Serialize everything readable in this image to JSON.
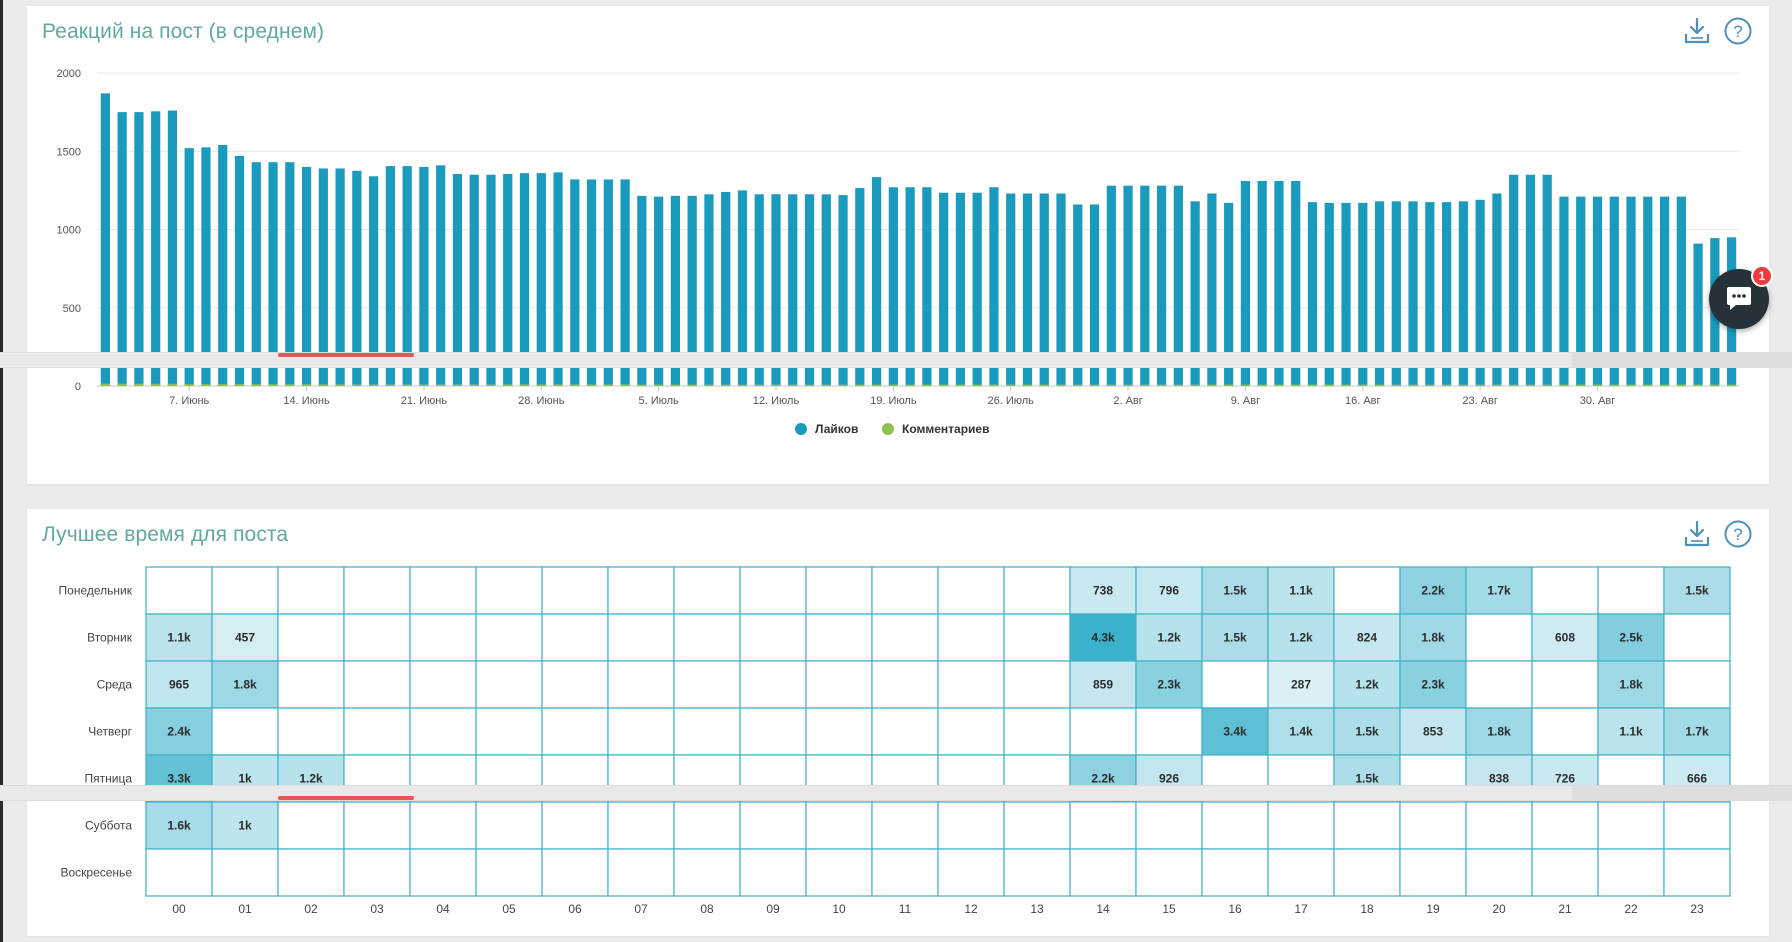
{
  "panels": {
    "reactions": {
      "title": "Реакций на пост (в среднем)"
    },
    "best_time": {
      "title": "Лучшее время для поста"
    }
  },
  "colors": {
    "likes": "#1a9bbd",
    "comments": "#8cc152",
    "title": "#5fa9a0",
    "heat_cell_border": "#3fb0c4",
    "heat_low": "#e6f4f8",
    "heat_high": "#3ab2cb"
  },
  "icons": {
    "download": "download-icon",
    "help": "help-icon",
    "chat": "chat-icon"
  },
  "chat": {
    "badge": "1"
  },
  "chart_data": [
    {
      "type": "bar",
      "title": "Реакций на пост (в среднем)",
      "ylim": [
        0,
        2000
      ],
      "yticks": [
        0,
        500,
        1000,
        1500,
        2000
      ],
      "x_start": "2018-06-02",
      "x_ticks": [
        {
          "date": "2018-06-07",
          "label": "7. Июнь"
        },
        {
          "date": "2018-06-14",
          "label": "14. Июнь"
        },
        {
          "date": "2018-06-21",
          "label": "21. Июнь"
        },
        {
          "date": "2018-06-28",
          "label": "28. Июнь"
        },
        {
          "date": "2018-07-05",
          "label": "5. Июль"
        },
        {
          "date": "2018-07-12",
          "label": "12. Июль"
        },
        {
          "date": "2018-07-19",
          "label": "19. Июль"
        },
        {
          "date": "2018-07-26",
          "label": "26. Июль"
        },
        {
          "date": "2018-08-02",
          "label": "2. Авг"
        },
        {
          "date": "2018-08-09",
          "label": "9. Авг"
        },
        {
          "date": "2018-08-16",
          "label": "16. Авг"
        },
        {
          "date": "2018-08-23",
          "label": "23. Авг"
        },
        {
          "date": "2018-08-30",
          "label": "30. Авг"
        }
      ],
      "legend_position": "bottom-center",
      "grid": true,
      "series": [
        {
          "name": "Лайков",
          "color": "#1a9bbd",
          "values": [
            1870,
            1750,
            1750,
            1755,
            1760,
            1520,
            1525,
            1540,
            1470,
            1430,
            1430,
            1430,
            1400,
            1390,
            1390,
            1375,
            1340,
            1405,
            1405,
            1400,
            1410,
            1355,
            1350,
            1350,
            1355,
            1360,
            1360,
            1365,
            1320,
            1320,
            1320,
            1320,
            1215,
            1210,
            1215,
            1215,
            1225,
            1240,
            1250,
            1225,
            1225,
            1225,
            1225,
            1225,
            1220,
            1265,
            1335,
            1270,
            1270,
            1270,
            1235,
            1235,
            1235,
            1270,
            1230,
            1230,
            1230,
            1230,
            1160,
            1160,
            1280,
            1280,
            1280,
            1280,
            1280,
            1180,
            1230,
            1170,
            1310,
            1310,
            1310,
            1310,
            1175,
            1170,
            1170,
            1170,
            1180,
            1180,
            1180,
            1175,
            1175,
            1180,
            1190,
            1230,
            1350,
            1350,
            1350,
            1210,
            1210,
            1210,
            1210,
            1210,
            1210,
            1210,
            1210,
            910,
            945,
            950
          ]
        },
        {
          "name": "Комментариев",
          "color": "#8cc152",
          "values": [
            15,
            15,
            15,
            14,
            14,
            12,
            12,
            12,
            12,
            11,
            11,
            11,
            11,
            10,
            10,
            10,
            10,
            10,
            10,
            10,
            10,
            10,
            10,
            10,
            10,
            10,
            10,
            10,
            10,
            10,
            10,
            10,
            9,
            9,
            9,
            9,
            9,
            9,
            9,
            9,
            9,
            9,
            9,
            9,
            9,
            9,
            9,
            9,
            9,
            9,
            9,
            9,
            9,
            9,
            9,
            9,
            9,
            9,
            9,
            9,
            9,
            9,
            9,
            9,
            9,
            9,
            9,
            9,
            9,
            9,
            9,
            9,
            9,
            9,
            9,
            9,
            9,
            9,
            9,
            9,
            9,
            9,
            9,
            9,
            9,
            9,
            9,
            9,
            9,
            9,
            9,
            9,
            9,
            9,
            9,
            9,
            9,
            9
          ]
        }
      ]
    },
    {
      "type": "heatmap",
      "title": "Лучшее время для поста",
      "x_labels": [
        "00",
        "01",
        "02",
        "03",
        "04",
        "05",
        "06",
        "07",
        "08",
        "09",
        "10",
        "11",
        "12",
        "13",
        "14",
        "15",
        "16",
        "17",
        "18",
        "19",
        "20",
        "21",
        "22",
        "23"
      ],
      "y_labels": [
        "Понедельник",
        "Вторник",
        "Среда",
        "Четверг",
        "Пятница",
        "Суббота",
        "Воскресенье"
      ],
      "cells": [
        [
          null,
          null,
          null,
          null,
          null,
          null,
          null,
          null,
          null,
          null,
          null,
          null,
          null,
          null,
          "738",
          "796",
          "1.5k",
          "1.1k",
          null,
          "2.2k",
          "1.7k",
          null,
          null,
          "1.5k"
        ],
        [
          "1.1k",
          "457",
          null,
          null,
          null,
          null,
          null,
          null,
          null,
          null,
          null,
          null,
          null,
          null,
          "4.3k",
          "1.2k",
          "1.5k",
          "1.2k",
          "824",
          "1.8k",
          null,
          "608",
          "2.5k",
          null
        ],
        [
          "965",
          "1.8k",
          null,
          null,
          null,
          null,
          null,
          null,
          null,
          null,
          null,
          null,
          null,
          null,
          "859",
          "2.3k",
          null,
          "287",
          "1.2k",
          "2.3k",
          null,
          null,
          "1.8k",
          null
        ],
        [
          "2.4k",
          null,
          null,
          null,
          null,
          null,
          null,
          null,
          null,
          null,
          null,
          null,
          null,
          null,
          null,
          null,
          "3.4k",
          "1.4k",
          "1.5k",
          "853",
          "1.8k",
          null,
          "1.1k",
          "1.7k"
        ],
        [
          "3.3k",
          "1k",
          "1.2k",
          null,
          null,
          null,
          null,
          null,
          null,
          null,
          null,
          null,
          null,
          null,
          "2.2k",
          "926",
          null,
          null,
          "1.5k",
          null,
          "838",
          "726",
          null,
          "666"
        ],
        [
          "1.6k",
          "1k",
          null,
          null,
          null,
          null,
          null,
          null,
          null,
          null,
          null,
          null,
          null,
          null,
          null,
          null,
          null,
          null,
          null,
          null,
          null,
          null,
          null,
          null
        ],
        [
          null,
          null,
          null,
          null,
          null,
          null,
          null,
          null,
          null,
          null,
          null,
          null,
          null,
          null,
          null,
          null,
          null,
          null,
          null,
          null,
          null,
          null,
          null,
          null
        ]
      ]
    }
  ]
}
